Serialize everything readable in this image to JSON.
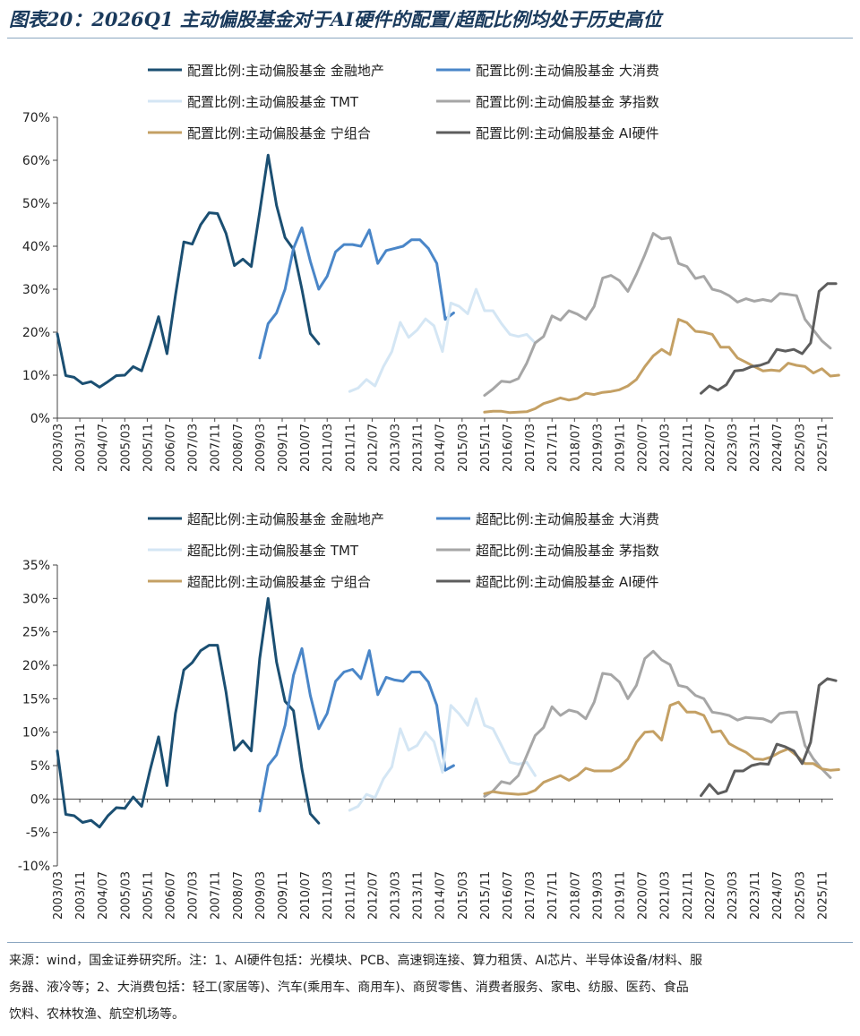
{
  "title": "图表20：2026Q1 主动偏股基金对于AI硬件的配置/超配比例均处于历史高位",
  "footer": {
    "line1": "来源：wind，国金证券研究所。注：1、AI硬件包括：光模块、PCB、高速铜连接、算力租赁、AI芯片、半导体设备/材料、服",
    "line2": "务器、液冷等；2、大消费包括：轻工(家居等)、汽车(乘用车、商用车)、商贸零售、消费者服务、家电、纺服、医药、食品",
    "line3": "饮料、农林牧渔、航空机场等。"
  },
  "x_tick_labels": [
    "2003/03",
    "2003/11",
    "2004/07",
    "2005/03",
    "2005/11",
    "2006/07",
    "2007/03",
    "2007/11",
    "2008/07",
    "2009/03",
    "2009/11",
    "2010/07",
    "2011/03",
    "2011/11",
    "2012/07",
    "2013/03",
    "2013/11",
    "2014/07",
    "2015/03",
    "2015/11",
    "2016/07",
    "2017/03",
    "2017/11",
    "2018/07",
    "2019/03",
    "2019/11",
    "2020/07",
    "2021/03",
    "2021/11",
    "2022/07",
    "2023/03",
    "2023/11",
    "2024/07",
    "2025/03",
    "2025/11"
  ],
  "chart_data": [
    {
      "type": "line",
      "ylim": [
        0,
        70
      ],
      "yticks": [
        0,
        10,
        20,
        30,
        40,
        50,
        60,
        70
      ],
      "ytick_labels": [
        "0%",
        "10%",
        "20%",
        "30%",
        "40%",
        "50%",
        "60%",
        "70%"
      ],
      "grid": false,
      "legend_position": "top",
      "series": [
        {
          "name": "配置比例:主动偏股基金 金融地产",
          "color": "#1b4f72",
          "start": "2003/03",
          "values": [
            19.6,
            9.9,
            9.5,
            8.0,
            8.5,
            7.2,
            8.5,
            9.9,
            10.0,
            12.0,
            11.0,
            17.0,
            23.6,
            15.0,
            28.5,
            41.0,
            40.5,
            45.0,
            47.8,
            47.6,
            43.0,
            35.5,
            37.0,
            35.3,
            48.0,
            61.2,
            49.5,
            42.0,
            39.3,
            30.0,
            19.7,
            17.3
          ]
        },
        {
          "name": "配置比例:主动偏股基金 大消费",
          "color": "#4a86c8",
          "start": "2009/03",
          "values": [
            14.0,
            22.0,
            24.5,
            30.0,
            39.5,
            44.3,
            36.5,
            30.0,
            33.0,
            38.7,
            40.4,
            40.4,
            40.0,
            43.8,
            36.0,
            39.0,
            39.5,
            40.0,
            41.5,
            41.5,
            39.5,
            36.0,
            23.0,
            24.5
          ]
        },
        {
          "name": "配置比例:主动偏股基金 TMT",
          "color": "#d4e6f4",
          "start": "2011/11",
          "values": [
            6.2,
            7.0,
            9.0,
            7.5,
            12.0,
            15.5,
            22.3,
            18.8,
            20.5,
            23.1,
            21.5,
            15.5,
            26.8,
            26.0,
            24.3,
            30.0,
            25.0,
            25.0,
            22.0,
            19.5,
            19.0,
            19.5,
            17.5
          ]
        },
        {
          "name": "配置比例:主动偏股基金 茅指数",
          "color": "#a6a6a6",
          "start": "2015/11",
          "values": [
            5.3,
            6.8,
            8.6,
            8.4,
            9.2,
            12.8,
            17.5,
            19.0,
            23.8,
            22.8,
            25.0,
            24.2,
            23.0,
            26.0,
            32.6,
            33.2,
            32.0,
            29.5,
            33.5,
            38.0,
            43.0,
            41.7,
            42.0,
            36.0,
            35.3,
            32.5,
            33.0,
            30.0,
            29.5,
            28.5,
            27.0,
            27.8,
            27.2,
            27.6,
            27.2,
            29.0,
            28.8,
            28.5,
            23.0,
            20.5,
            18.0,
            16.3
          ]
        },
        {
          "name": "配置比例:主动偏股基金 宁组合",
          "color": "#c4a064",
          "start": "2015/11",
          "values": [
            1.4,
            1.6,
            1.6,
            1.3,
            1.4,
            1.5,
            2.2,
            3.4,
            4.0,
            4.7,
            4.2,
            4.6,
            5.8,
            5.5,
            6.0,
            6.2,
            6.6,
            7.5,
            9.0,
            12.0,
            14.5,
            16.0,
            14.8,
            23.0,
            22.2,
            20.2,
            20.0,
            19.5,
            16.5,
            16.5,
            14.0,
            13.0,
            12.0,
            11.0,
            11.2,
            11.0,
            12.8,
            12.3,
            12.0,
            10.5,
            11.5,
            9.8,
            10.0
          ]
        },
        {
          "name": "配置比例:主动偏股基金 AI硬件",
          "color": "#5d5d5d",
          "start": "2022/04",
          "values": [
            5.8,
            7.5,
            6.5,
            7.8,
            11.0,
            11.2,
            12.0,
            12.3,
            13.0,
            16.0,
            15.6,
            16.0,
            15.0,
            17.5,
            29.5,
            31.3,
            31.3
          ]
        }
      ]
    },
    {
      "type": "line",
      "ylim": [
        -10,
        35
      ],
      "yticks": [
        -10,
        -5,
        0,
        5,
        10,
        15,
        20,
        25,
        30,
        35
      ],
      "ytick_labels": [
        "-10%",
        "-5%",
        "0%",
        "5%",
        "10%",
        "15%",
        "20%",
        "25%",
        "30%",
        "35%"
      ],
      "grid": false,
      "legend_position": "top",
      "series": [
        {
          "name": "超配比例:主动偏股基金 金融地产",
          "color": "#1b4f72",
          "start": "2003/03",
          "values": [
            7.2,
            -2.3,
            -2.5,
            -3.5,
            -3.2,
            -4.2,
            -2.5,
            -1.3,
            -1.4,
            0.3,
            -1.1,
            4.3,
            9.3,
            2.0,
            12.8,
            19.3,
            20.4,
            22.2,
            23.0,
            23.0,
            16.0,
            7.3,
            8.7,
            7.2,
            21.0,
            30.0,
            20.5,
            14.6,
            13.2,
            4.5,
            -2.2,
            -3.6
          ]
        },
        {
          "name": "超配比例:主动偏股基金 大消费",
          "color": "#4a86c8",
          "start": "2009/03",
          "values": [
            -1.8,
            5.0,
            6.6,
            11.0,
            18.5,
            22.5,
            15.5,
            10.5,
            12.8,
            17.6,
            19.0,
            19.4,
            18.0,
            22.2,
            15.6,
            18.2,
            17.8,
            17.6,
            19.0,
            19.0,
            17.5,
            14.0,
            4.3,
            5.0
          ]
        },
        {
          "name": "超配比例:主动偏股基金 TMT",
          "color": "#d4e6f4",
          "start": "2011/11",
          "values": [
            -1.7,
            -1.1,
            0.7,
            0.2,
            3.0,
            4.8,
            10.5,
            7.3,
            8.0,
            10.0,
            8.6,
            4.0,
            14.0,
            12.7,
            11.0,
            15.0,
            11.0,
            10.5,
            8.0,
            5.5,
            5.2,
            5.5,
            3.5
          ]
        },
        {
          "name": "超配比例:主动偏股基金 茅指数",
          "color": "#a6a6a6",
          "start": "2015/11",
          "values": [
            0.4,
            1.2,
            2.6,
            2.3,
            3.5,
            6.5,
            9.5,
            10.7,
            13.8,
            12.5,
            13.3,
            13.0,
            12.0,
            14.5,
            18.8,
            18.6,
            17.5,
            15.0,
            17.0,
            21.0,
            22.1,
            20.8,
            20.1,
            17.0,
            16.7,
            15.5,
            15.0,
            13.0,
            12.8,
            12.5,
            11.8,
            12.2,
            12.1,
            12.0,
            11.5,
            12.8,
            13.0,
            13.0,
            8.0,
            6.0,
            4.5,
            3.2
          ]
        },
        {
          "name": "超配比例:主动偏股基金 宁组合",
          "color": "#c4a064",
          "start": "2015/11",
          "values": [
            0.8,
            1.1,
            0.9,
            0.8,
            0.7,
            0.8,
            1.3,
            2.5,
            3.0,
            3.5,
            2.8,
            3.5,
            4.6,
            4.2,
            4.2,
            4.2,
            4.8,
            6.0,
            8.5,
            10.0,
            10.1,
            8.8,
            14.0,
            14.5,
            13.0,
            13.0,
            12.5,
            10.0,
            10.2,
            8.3,
            7.6,
            7.0,
            6.0,
            5.9,
            6.3,
            7.0,
            7.5,
            6.5,
            5.3,
            5.3,
            4.5,
            4.3,
            4.4
          ]
        },
        {
          "name": "超配比例:主动偏股基金 AI硬件",
          "color": "#5d5d5d",
          "start": "2022/04",
          "values": [
            0.5,
            2.2,
            0.8,
            1.2,
            4.2,
            4.2,
            5.0,
            5.3,
            5.2,
            8.2,
            7.8,
            7.2,
            5.3,
            8.5,
            17.0,
            18.0,
            17.7
          ]
        }
      ]
    }
  ]
}
